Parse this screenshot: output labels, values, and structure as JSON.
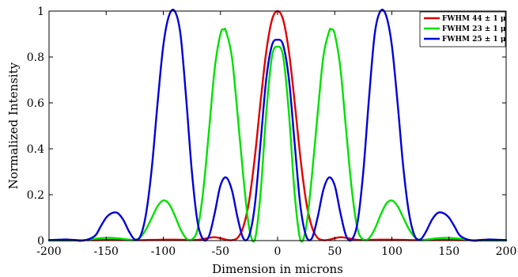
{
  "chart_data": {
    "type": "line",
    "xlabel": "Dimension in microns",
    "ylabel": "Normalized Intensity",
    "xlim": [
      -200,
      200
    ],
    "ylim": [
      0,
      1
    ],
    "xticks": [
      -200,
      -150,
      -100,
      -50,
      0,
      50,
      100,
      150,
      200
    ],
    "yticks": [
      0,
      0.2,
      0.4,
      0.6,
      0.8,
      1
    ],
    "xtick_labels": [
      "-200",
      "-150",
      "-100",
      "-50",
      "0",
      "50",
      "100",
      "150",
      "200"
    ],
    "ytick_labels": [
      "0",
      "0.2",
      "0.4",
      "0.6",
      "0.8",
      "1"
    ],
    "grid": false,
    "legend_position": "top-right",
    "series": [
      {
        "name": "FWHM 44 ± 1 μ",
        "color": "#e00000",
        "x": [
          -200,
          -190,
          -180,
          -170,
          -160,
          -150,
          -140,
          -130,
          -120,
          -110,
          -100,
          -90,
          -80,
          -70,
          -60,
          -55,
          -50,
          -45,
          -40,
          -35,
          -30,
          -25,
          -20,
          -15,
          -10,
          -5,
          0,
          5,
          10,
          15,
          20,
          25,
          30,
          35,
          40,
          45,
          50,
          55,
          60,
          70,
          80,
          90,
          100,
          110,
          120,
          130,
          140,
          150,
          160,
          170,
          180,
          190,
          200
        ],
        "y": [
          0.002,
          0.003,
          0.003,
          0.002,
          0.002,
          0.003,
          0.004,
          0.003,
          0.002,
          0.003,
          0.004,
          0.004,
          0.003,
          0.003,
          0.012,
          0.015,
          0.01,
          0.004,
          0.002,
          0.012,
          0.06,
          0.17,
          0.36,
          0.6,
          0.82,
          0.96,
          1.0,
          0.96,
          0.82,
          0.6,
          0.36,
          0.17,
          0.06,
          0.012,
          0.002,
          0.004,
          0.01,
          0.015,
          0.012,
          0.003,
          0.003,
          0.004,
          0.004,
          0.003,
          0.002,
          0.003,
          0.004,
          0.003,
          0.002,
          0.002,
          0.003,
          0.003,
          0.002
        ]
      },
      {
        "name": "FWHM 23 ± 1 μ",
        "color": "#00e000",
        "x": [
          -200,
          -190,
          -180,
          -170,
          -160,
          -150,
          -140,
          -130,
          -125,
          -120,
          -115,
          -110,
          -105,
          -100,
          -95,
          -90,
          -85,
          -80,
          -75,
          -70,
          -65,
          -60,
          -55,
          -50,
          -47,
          -45,
          -40,
          -35,
          -30,
          -25,
          -20,
          -15,
          -10,
          -5,
          0,
          5,
          10,
          15,
          20,
          25,
          30,
          35,
          40,
          45,
          47,
          50,
          55,
          60,
          65,
          70,
          75,
          80,
          85,
          90,
          95,
          100,
          105,
          110,
          115,
          120,
          125,
          130,
          140,
          150,
          160,
          170,
          180,
          190,
          200
        ],
        "y": [
          0.0,
          0.0,
          0.0,
          0.002,
          0.008,
          0.012,
          0.01,
          0.004,
          0.002,
          0.015,
          0.05,
          0.1,
          0.15,
          0.175,
          0.16,
          0.11,
          0.05,
          0.01,
          0.005,
          0.05,
          0.22,
          0.48,
          0.75,
          0.9,
          0.92,
          0.91,
          0.8,
          0.55,
          0.28,
          0.06,
          0.003,
          0.2,
          0.55,
          0.8,
          0.845,
          0.8,
          0.55,
          0.2,
          0.003,
          0.06,
          0.28,
          0.55,
          0.8,
          0.91,
          0.92,
          0.9,
          0.75,
          0.48,
          0.22,
          0.05,
          0.005,
          0.01,
          0.05,
          0.11,
          0.16,
          0.175,
          0.15,
          0.1,
          0.05,
          0.015,
          0.002,
          0.004,
          0.01,
          0.012,
          0.008,
          0.002,
          0.0,
          0.0,
          0.0
        ]
      },
      {
        "name": "FWHM 25 ± 1 μ",
        "color": "#0000d8",
        "x": [
          -200,
          -190,
          -185,
          -180,
          -170,
          -160,
          -155,
          -150,
          -145,
          -140,
          -135,
          -130,
          -125,
          -120,
          -115,
          -110,
          -105,
          -100,
          -95,
          -90,
          -85,
          -80,
          -75,
          -70,
          -65,
          -60,
          -55,
          -50,
          -45,
          -40,
          -35,
          -30,
          -25,
          -20,
          -15,
          -10,
          -5,
          0,
          5,
          10,
          15,
          20,
          25,
          30,
          35,
          40,
          45,
          50,
          55,
          60,
          65,
          70,
          75,
          80,
          85,
          90,
          95,
          100,
          105,
          110,
          115,
          120,
          125,
          130,
          135,
          140,
          145,
          150,
          155,
          160,
          170,
          180,
          185,
          190,
          200
        ],
        "y": [
          0.002,
          0.004,
          0.005,
          0.003,
          0.0,
          0.02,
          0.06,
          0.1,
          0.12,
          0.12,
          0.09,
          0.04,
          0.005,
          0.02,
          0.12,
          0.32,
          0.6,
          0.85,
          0.98,
          1.0,
          0.9,
          0.62,
          0.3,
          0.08,
          0.005,
          0.02,
          0.12,
          0.24,
          0.275,
          0.22,
          0.1,
          0.01,
          0.02,
          0.15,
          0.42,
          0.7,
          0.85,
          0.875,
          0.85,
          0.7,
          0.42,
          0.15,
          0.02,
          0.01,
          0.1,
          0.22,
          0.275,
          0.24,
          0.12,
          0.02,
          0.005,
          0.08,
          0.3,
          0.62,
          0.9,
          1.0,
          0.98,
          0.85,
          0.6,
          0.32,
          0.12,
          0.02,
          0.005,
          0.04,
          0.09,
          0.12,
          0.12,
          0.1,
          0.06,
          0.02,
          0.0,
          0.003,
          0.005,
          0.004,
          0.002
        ]
      }
    ]
  }
}
